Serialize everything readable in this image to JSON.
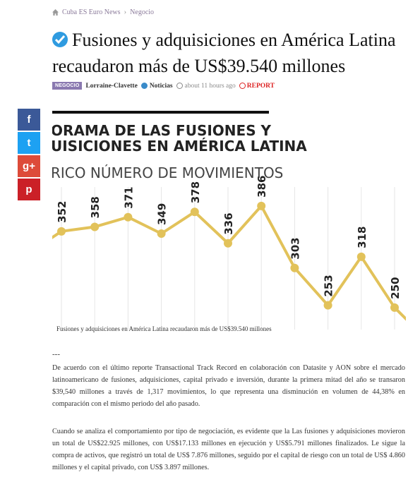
{
  "breadcrumb": {
    "site": "Cuba ES Euro News",
    "section": "Negocio"
  },
  "article": {
    "title": "Fusiones y adquisiciones en América Latina recaudaron más de US$39.540 millones",
    "category_badge": "NEGOCIO",
    "author": "Lorraine-Clavette",
    "category": "Noticias",
    "time": "about 11 hours ago",
    "report_label": "REPORT"
  },
  "social": [
    {
      "name": "facebook",
      "glyph": "f",
      "color": "#3b5998"
    },
    {
      "name": "twitter",
      "glyph": "t",
      "color": "#1da1f2"
    },
    {
      "name": "google-plus",
      "glyph": "g+",
      "color": "#dd4b39"
    },
    {
      "name": "pinterest",
      "glyph": "p",
      "color": "#cb2027"
    }
  ],
  "chart_data": {
    "type": "line",
    "title_line1": "ORAMA DE LAS FUSIONES Y",
    "title_line2": "UISICIONES EN AMÉRICA LATINA",
    "subtitle": "RICO NÚMERO DE MOVIMIENTOS",
    "values": [
      352,
      358,
      371,
      349,
      378,
      336,
      386,
      303,
      253,
      318,
      250
    ],
    "line_color": "#e2c25a",
    "ylim": [
      230,
      400
    ]
  },
  "caption": "Fusiones y adquisiciones en América Latina recaudaron más de US$39.540 millones",
  "separator": "---",
  "paragraph1": "De acuerdo con el último reporte Transactional Track Record en colaboración con Datasite y AON sobre el mercado latinoamericano de fusiones, adquisiciones, capital privado e inversión, durante la primera mitad del año se transaron $39,540 millones a través de 1,317 movimientos, lo que representa una disminución en volumen de 44,38% en comparación con el mismo periodo del año pasado.",
  "paragraph2": "Cuando se analiza el comportamiento por tipo de negociación, es evidente que la Las fusiones y adquisiciones movieron un total de US$22.925 millones, con US$17.133 millones en ejecución y US$5.791 millones finalizados. Le sigue la compra de activos, que registró un total de US$ 7.876 millones, seguido por el capital de riesgo con un total de US$ 4.860 millones y el capital privado, con US$ 3.897 millones."
}
